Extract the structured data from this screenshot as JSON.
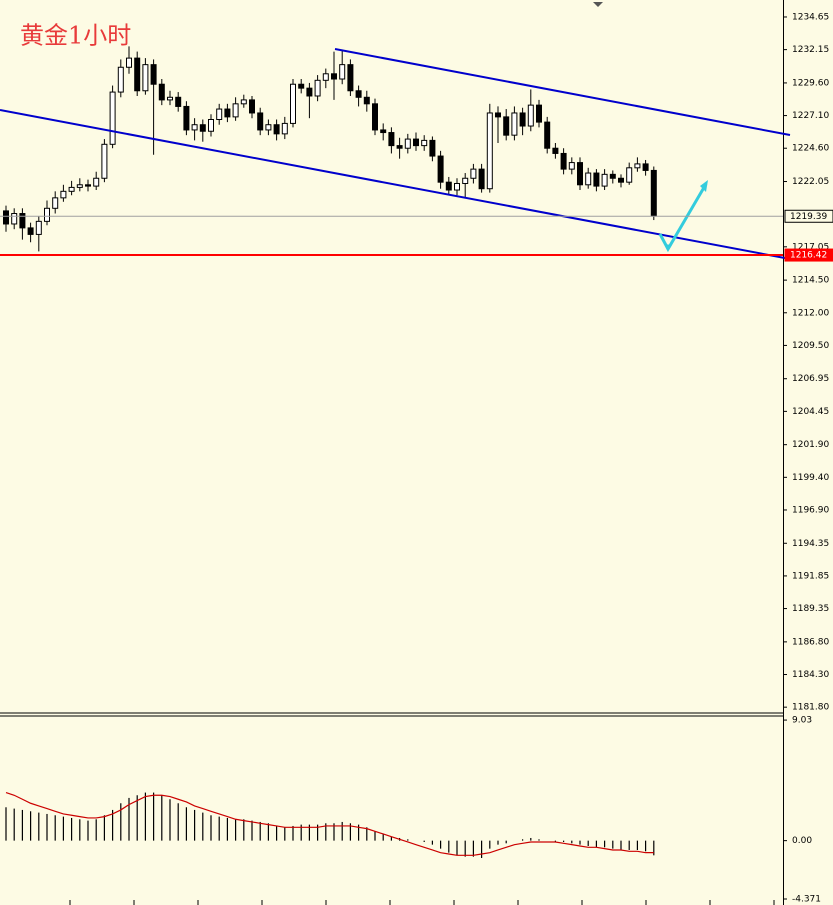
{
  "chart_data": [
    {
      "type": "candlestick",
      "title": "黄金1小时",
      "open": [
        1219.8,
        1218.8,
        1219.6,
        1218.5,
        1218.0,
        1219.0,
        1220.0,
        1220.8,
        1221.3,
        1221.6,
        1221.8,
        1221.7,
        1222.3,
        1224.9,
        1228.9,
        1230.8,
        1231.5,
        1229.0,
        1231.0,
        1229.5,
        1228.3,
        1228.5,
        1227.8,
        1226.0,
        1226.4,
        1225.9,
        1226.8,
        1227.6,
        1227.0,
        1228.0,
        1228.3,
        1227.3,
        1226.0,
        1226.4,
        1225.7,
        1226.5,
        1229.5,
        1229.2,
        1228.6,
        1229.8,
        1230.3,
        1229.9,
        1231.0,
        1229.0,
        1228.5,
        1228.0,
        1226.0,
        1225.8,
        1224.8,
        1224.6,
        1225.3,
        1224.8,
        1225.2,
        1224.0,
        1222.0,
        1221.4,
        1221.9,
        1222.3,
        1223.0,
        1221.5,
        1227.3,
        1227.0,
        1225.6,
        1227.3,
        1226.3,
        1227.9,
        1226.6,
        1224.6,
        1224.2,
        1223.0,
        1223.5,
        1221.8,
        1222.7,
        1221.7,
        1222.6,
        1222.3,
        1222.0,
        1223.1,
        1223.4,
        1222.9
      ],
      "high": [
        1220.2,
        1220.0,
        1220.0,
        1218.9,
        1219.4,
        1220.6,
        1221.3,
        1221.8,
        1222.1,
        1222.3,
        1222.2,
        1222.8,
        1225.3,
        1229.4,
        1231.4,
        1232.4,
        1232.0,
        1231.5,
        1231.4,
        1229.9,
        1229.0,
        1228.9,
        1228.2,
        1226.9,
        1226.8,
        1227.2,
        1228.0,
        1228.0,
        1228.5,
        1228.7,
        1228.6,
        1227.7,
        1226.8,
        1226.8,
        1227.0,
        1229.9,
        1229.9,
        1229.6,
        1230.2,
        1230.7,
        1232.0,
        1232.1,
        1231.4,
        1229.4,
        1229.0,
        1228.4,
        1226.5,
        1226.2,
        1225.4,
        1225.7,
        1225.8,
        1225.6,
        1225.5,
        1224.4,
        1222.4,
        1222.3,
        1222.7,
        1223.4,
        1223.4,
        1228.0,
        1227.8,
        1227.6,
        1227.8,
        1227.7,
        1229.1,
        1228.3,
        1227.0,
        1225.0,
        1224.6,
        1223.9,
        1223.9,
        1223.1,
        1223.0,
        1223.0,
        1222.9,
        1222.6,
        1223.5,
        1223.9,
        1223.7,
        1223.2
      ],
      "low": [
        1218.2,
        1218.4,
        1217.6,
        1217.4,
        1216.7,
        1218.7,
        1219.6,
        1220.5,
        1221.0,
        1221.3,
        1221.3,
        1221.4,
        1222.0,
        1224.6,
        1228.5,
        1230.3,
        1228.6,
        1228.7,
        1224.1,
        1227.9,
        1227.9,
        1227.4,
        1225.6,
        1225.2,
        1225.1,
        1225.5,
        1226.4,
        1226.6,
        1226.7,
        1227.7,
        1226.9,
        1225.6,
        1225.6,
        1225.2,
        1225.3,
        1226.2,
        1228.8,
        1226.9,
        1228.2,
        1229.2,
        1228.3,
        1229.5,
        1228.6,
        1227.8,
        1227.4,
        1225.6,
        1225.2,
        1224.2,
        1223.8,
        1224.2,
        1224.4,
        1224.4,
        1223.6,
        1221.5,
        1221.0,
        1221.0,
        1220.8,
        1221.9,
        1221.2,
        1221.2,
        1225.0,
        1225.2,
        1225.2,
        1225.6,
        1225.9,
        1226.2,
        1224.2,
        1223.8,
        1222.6,
        1222.6,
        1221.4,
        1221.5,
        1221.3,
        1221.4,
        1221.9,
        1221.6,
        1221.8,
        1222.8,
        1222.5,
        1219.1
      ],
      "close": [
        1218.8,
        1219.6,
        1218.5,
        1218.0,
        1219.0,
        1220.0,
        1220.8,
        1221.3,
        1221.6,
        1221.8,
        1221.7,
        1222.3,
        1224.9,
        1228.9,
        1230.8,
        1231.5,
        1229.0,
        1231.0,
        1229.5,
        1228.3,
        1228.5,
        1227.8,
        1226.0,
        1226.4,
        1225.9,
        1226.8,
        1227.6,
        1227.0,
        1228.0,
        1228.3,
        1227.3,
        1226.0,
        1226.4,
        1225.7,
        1226.5,
        1229.5,
        1229.2,
        1228.6,
        1229.8,
        1230.3,
        1229.9,
        1231.0,
        1229.0,
        1228.5,
        1228.0,
        1226.0,
        1225.8,
        1224.8,
        1224.6,
        1225.3,
        1224.8,
        1225.2,
        1224.0,
        1222.0,
        1221.4,
        1221.9,
        1222.3,
        1223.0,
        1221.5,
        1227.3,
        1227.0,
        1225.6,
        1227.3,
        1226.3,
        1227.9,
        1226.6,
        1224.6,
        1224.2,
        1223.0,
        1223.5,
        1221.8,
        1222.7,
        1221.7,
        1222.6,
        1222.3,
        1222.0,
        1223.1,
        1223.4,
        1222.9,
        1219.4
      ],
      "ylim": [
        1181.43,
        1235.95
      ],
      "yticks": [
        1234.65,
        1232.15,
        {
          "value": 1229.6,
          "label": "1229.60"
        },
        {
          "value": 1227.1,
          "label": "1227.10"
        },
        {
          "value": 1224.6,
          "label": "1224.60"
        },
        1222.05,
        1217.05,
        {
          "value": 1214.5,
          "label": "1214.50"
        },
        {
          "value": 1212,
          "label": "1212.00"
        },
        {
          "value": 1209.5,
          "label": "1209.50"
        },
        1206.95,
        1204.45,
        {
          "value": 1201.9,
          "label": "1201.90"
        },
        {
          "value": 1199.4,
          "label": "1199.40"
        },
        {
          "value": 1196.9,
          "label": "1196.90"
        },
        1194.35,
        1191.85,
        {
          "value": 1189.35,
          "label": "1189.35"
        },
        {
          "value": 1186.8,
          "label": "1186.80"
        },
        {
          "value": 1184.3,
          "label": "1184.30"
        },
        {
          "value": 1181.8,
          "label": "1181.80"
        }
      ],
      "price_lines": [
        {
          "value": 1219.39,
          "color": "#a0a0a0"
        },
        {
          "value": 1216.42,
          "color": "#ff0000"
        }
      ]
    },
    {
      "type": "macd",
      "histogram": {
        "color": "#000000",
        "values": [
          2.5,
          2.4,
          2.3,
          2.2,
          2.1,
          2.0,
          1.9,
          1.8,
          1.7,
          1.6,
          1.5,
          1.6,
          1.9,
          2.3,
          2.8,
          3.2,
          3.4,
          3.6,
          3.6,
          3.4,
          3.1,
          2.8,
          2.5,
          2.3,
          2.1,
          1.9,
          1.8,
          1.7,
          1.6,
          1.6,
          1.5,
          1.4,
          1.3,
          1.1,
          1.0,
          1.1,
          1.2,
          1.2,
          1.2,
          1.3,
          1.3,
          1.4,
          1.3,
          1.2,
          1.0,
          0.7,
          0.5,
          0.3,
          0.2,
          0.1,
          0.0,
          -0.1,
          -0.3,
          -0.6,
          -0.9,
          -1.1,
          -1.2,
          -1.2,
          -1.3,
          -0.6,
          -0.3,
          -0.2,
          0.0,
          0.1,
          0.2,
          0.1,
          0.0,
          -0.1,
          -0.1,
          -0.2,
          -0.3,
          -0.4,
          -0.5,
          -0.5,
          -0.6,
          -0.7,
          -0.7,
          -0.7,
          -0.8,
          -1.1
        ]
      },
      "signal": {
        "color": "#cc0000",
        "values": [
          3.6,
          3.4,
          3.1,
          2.8,
          2.6,
          2.4,
          2.2,
          2.0,
          1.9,
          1.8,
          1.7,
          1.7,
          1.8,
          2.0,
          2.3,
          2.7,
          3.0,
          3.3,
          3.4,
          3.4,
          3.3,
          3.1,
          2.9,
          2.6,
          2.4,
          2.2,
          2.0,
          1.8,
          1.6,
          1.5,
          1.4,
          1.3,
          1.2,
          1.1,
          1.0,
          1.0,
          1.0,
          1.0,
          1.0,
          1.1,
          1.1,
          1.1,
          1.1,
          1.0,
          0.9,
          0.7,
          0.5,
          0.3,
          0.1,
          -0.1,
          -0.3,
          -0.5,
          -0.7,
          -0.9,
          -1.0,
          -1.1,
          -1.1,
          -1.1,
          -1.0,
          -0.9,
          -0.7,
          -0.5,
          -0.3,
          -0.2,
          -0.1,
          -0.1,
          -0.1,
          -0.1,
          -0.2,
          -0.3,
          -0.4,
          -0.5,
          -0.5,
          -0.6,
          -0.7,
          -0.7,
          -0.8,
          -0.8,
          -0.9,
          -0.9
        ]
      },
      "ylim": [
        -4.82,
        9.41
      ],
      "yticks": [
        9.03,
        {
          "value": 0,
          "label": "0.00"
        },
        -4.371
      ]
    }
  ]
}
